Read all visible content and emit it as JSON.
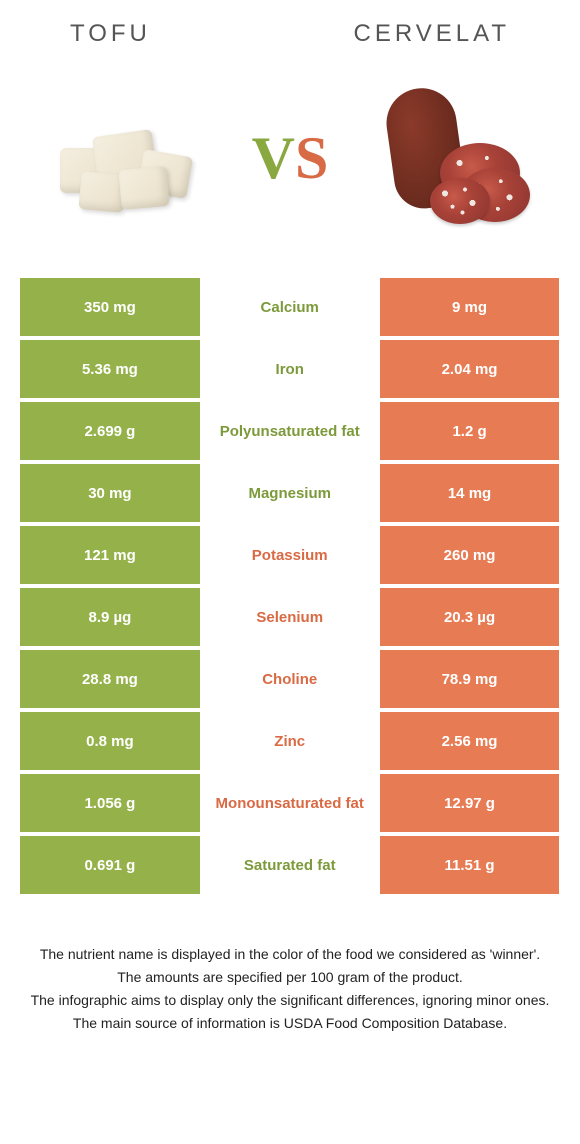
{
  "header": {
    "left_title": "TOFU",
    "right_title": "CERVELAT",
    "vs_v": "V",
    "vs_s": "S"
  },
  "colors": {
    "left_bg": "#95b24a",
    "right_bg": "#e77b53",
    "left_text": "#7d9a3b",
    "right_text": "#d96a44",
    "row_gap": 4
  },
  "rows": [
    {
      "left": "350 mg",
      "label": "Calcium",
      "right": "9 mg",
      "winner": "left"
    },
    {
      "left": "5.36 mg",
      "label": "Iron",
      "right": "2.04 mg",
      "winner": "left"
    },
    {
      "left": "2.699 g",
      "label": "Polyunsaturated fat",
      "right": "1.2 g",
      "winner": "left"
    },
    {
      "left": "30 mg",
      "label": "Magnesium",
      "right": "14 mg",
      "winner": "left"
    },
    {
      "left": "121 mg",
      "label": "Potassium",
      "right": "260 mg",
      "winner": "right"
    },
    {
      "left": "8.9 µg",
      "label": "Selenium",
      "right": "20.3 µg",
      "winner": "right"
    },
    {
      "left": "28.8 mg",
      "label": "Choline",
      "right": "78.9 mg",
      "winner": "right"
    },
    {
      "left": "0.8 mg",
      "label": "Zinc",
      "right": "2.56 mg",
      "winner": "right"
    },
    {
      "left": "1.056 g",
      "label": "Monounsaturated fat",
      "right": "12.97 g",
      "winner": "right"
    },
    {
      "left": "0.691 g",
      "label": "Saturated fat",
      "right": "11.51 g",
      "winner": "left"
    }
  ],
  "footer": {
    "line1": "The nutrient name is displayed in the color of the food we considered as 'winner'.",
    "line2": "The amounts are specified per 100 gram of the product.",
    "line3": "The infographic aims to display only the significant differences, ignoring minor ones.",
    "line4": "The main source of information is USDA Food Composition Database."
  }
}
